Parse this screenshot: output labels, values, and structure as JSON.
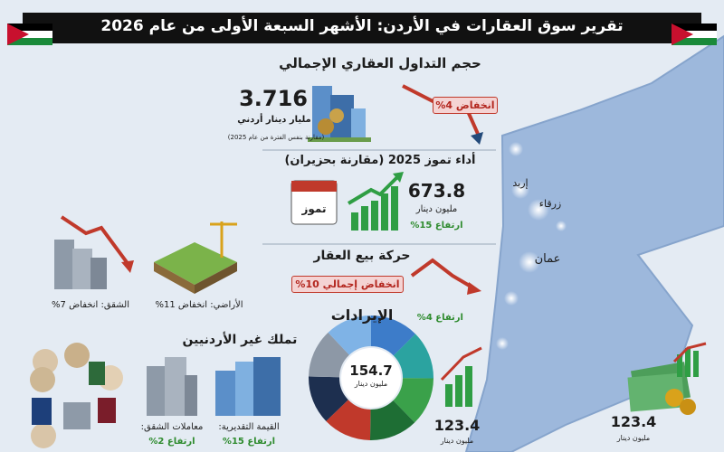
{
  "header": {
    "title": "تقرير سوق العقارات في الأردن: الأشهر السبعة الأولى من عام 2026"
  },
  "volume": {
    "title": "حجم التداول العقاري الإجمالي",
    "value": "3.716",
    "unit": "مليار دينار أردني",
    "note": "(مقارنة بنفس الفترة من عام 2025)",
    "change": "انخفاض 4%"
  },
  "july": {
    "title": "أداء تموز 2025 (مقارنة بحزيران)",
    "calendar_label": "تموز",
    "value": "673.8",
    "unit": "مليون دينار",
    "change": "ارتفاع 15%"
  },
  "sales": {
    "title": "حركة بيع العقار",
    "change": "انخفاض إجمالي 10%",
    "apartments": "الشقق: انخفاض 7%",
    "lands": "الأراضي: انخفاض 11%"
  },
  "revenue": {
    "title": "الإيرادات",
    "change": "ارتفاع 4%",
    "total": "154.7",
    "total_unit": "مليون دينار",
    "secondary": "123.4",
    "secondary_unit": "مليون دينار"
  },
  "foreign": {
    "title": "تملك غير الأردنيين",
    "apartments_label": "معاملات الشقق:",
    "apartments_change": "ارتفاع 2%",
    "value_label": "القيمة التقديرية:",
    "value_change": "ارتفاع 15%"
  },
  "map": {
    "labels": [
      "إربد",
      "زرقاء",
      "عمان"
    ]
  },
  "extra": {
    "value": "123.4",
    "unit": "مليون دينار"
  }
}
